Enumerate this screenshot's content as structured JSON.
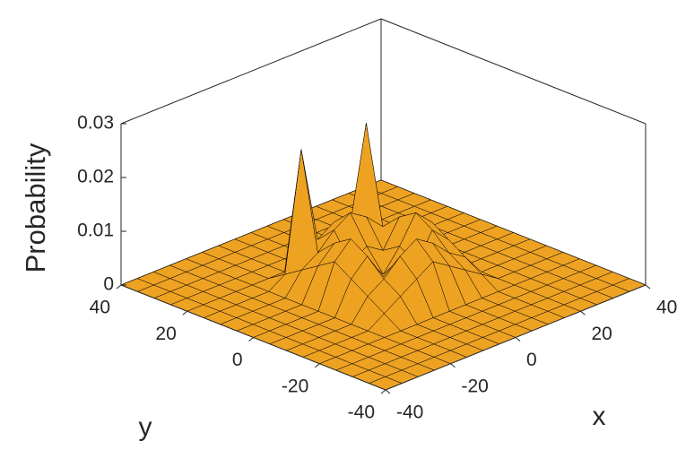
{
  "chart_data": {
    "type": "surface",
    "xlabel": "x",
    "ylabel": "y",
    "zlabel": "Probability",
    "x": [
      -40,
      -35,
      -30,
      -25,
      -20,
      -15,
      -10,
      -5,
      0,
      5,
      10,
      15,
      20,
      25,
      30,
      35,
      40
    ],
    "y": [
      -40,
      -35,
      -30,
      -25,
      -20,
      -15,
      -10,
      -5,
      0,
      5,
      10,
      15,
      20,
      25,
      30,
      35,
      40
    ],
    "z": [
      [
        0,
        0,
        0,
        0,
        0,
        0,
        0,
        0,
        0,
        0,
        0,
        0,
        0,
        0,
        0,
        0,
        0
      ],
      [
        0,
        0,
        0,
        0,
        0,
        0,
        0,
        0,
        0,
        0,
        0,
        0,
        0,
        0,
        0,
        0,
        0
      ],
      [
        0,
        0,
        0,
        0,
        0,
        0,
        0,
        0,
        0,
        0,
        0,
        0,
        0,
        0,
        0,
        0,
        0
      ],
      [
        0,
        0,
        0,
        0,
        0,
        0,
        0,
        0,
        0,
        0,
        0,
        0,
        0,
        0,
        0,
        0,
        0
      ],
      [
        0,
        0,
        0,
        0,
        0,
        0,
        0,
        0,
        0,
        0,
        0,
        0,
        0,
        0,
        0,
        0,
        0
      ],
      [
        0,
        0,
        0,
        0,
        0,
        0.002,
        0.004,
        0.006,
        0.008,
        0.006,
        0.004,
        0.002,
        0,
        0,
        0,
        0,
        0
      ],
      [
        0,
        0,
        0,
        0,
        0,
        0.004,
        0.006,
        0.009,
        0.011,
        0.009,
        0.006,
        0.004,
        0,
        0,
        0,
        0,
        0
      ],
      [
        0,
        0,
        0,
        0,
        0,
        0.006,
        0.009,
        0.004,
        0.006,
        0.004,
        0.009,
        0.006,
        0,
        0,
        0,
        0,
        0
      ],
      [
        0,
        0,
        0,
        0,
        0,
        0.008,
        0.011,
        0.006,
        0.002,
        0.006,
        0.011,
        0.008,
        0,
        0,
        0,
        0,
        0
      ],
      [
        0,
        0,
        0,
        0,
        0,
        0.006,
        0.009,
        0.004,
        0.006,
        0.004,
        0.009,
        0.006,
        0,
        0,
        0,
        0,
        0
      ],
      [
        0,
        0,
        0,
        0,
        0,
        0.004,
        0.006,
        0.009,
        0.011,
        0.009,
        0.006,
        0.004,
        0,
        0,
        0,
        0,
        0
      ],
      [
        0,
        0,
        0,
        0,
        0,
        0.002,
        0.024,
        0.006,
        0.008,
        0.006,
        0.024,
        0.002,
        0,
        0,
        0,
        0,
        0
      ],
      [
        0,
        0,
        0,
        0,
        0,
        0,
        0,
        0,
        0,
        0,
        0,
        0,
        0,
        0,
        0,
        0,
        0
      ],
      [
        0,
        0,
        0,
        0,
        0,
        0,
        0,
        0,
        0,
        0,
        0,
        0,
        0,
        0,
        0,
        0,
        0
      ],
      [
        0,
        0,
        0,
        0,
        0,
        0,
        0,
        0,
        0,
        0,
        0,
        0,
        0,
        0,
        0,
        0,
        0
      ],
      [
        0,
        0,
        0,
        0,
        0,
        0,
        0,
        0,
        0,
        0,
        0,
        0,
        0,
        0,
        0,
        0,
        0
      ],
      [
        0,
        0,
        0,
        0,
        0,
        0,
        0,
        0,
        0,
        0,
        0,
        0,
        0,
        0,
        0,
        0,
        0
      ]
    ],
    "color": "#eea222",
    "edgecolor": "#000000",
    "xlim": [
      -40,
      40
    ],
    "ylim": [
      -40,
      40
    ],
    "zlim": [
      0,
      0.03
    ],
    "xticks": [
      -40,
      -20,
      0,
      20,
      40
    ],
    "yticks": [
      -40,
      -20,
      0,
      20,
      40
    ],
    "zticks": [
      0,
      0.01,
      0.02,
      0.03
    ]
  }
}
